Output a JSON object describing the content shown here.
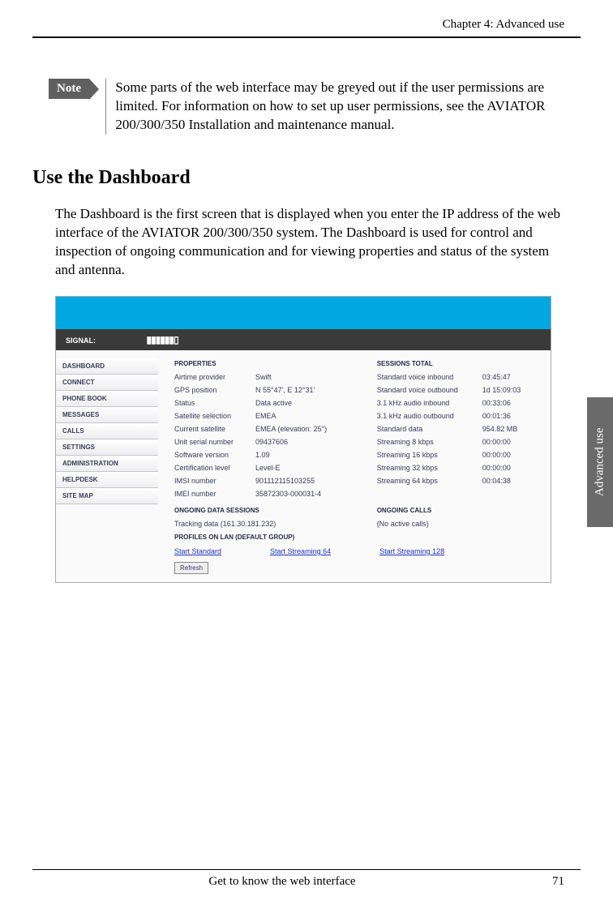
{
  "chapter_header": "Chapter 4:  Advanced use",
  "note": {
    "label": "Note",
    "text": "Some parts of the web interface may be greyed out if the user permissions are limited. For information on how to set up user permissions, see the AVIATOR 200/300/350 Installation and maintenance manual."
  },
  "section_heading": "Use the Dashboard",
  "body_paragraph": "The Dashboard is the first screen that is displayed when you enter the IP address of the web interface of the AVIATOR 200/300/350 system. The Dashboard is used for control and inspection of ongoing communication and for viewing properties and status of the system and antenna.",
  "side_tab": "Advanced use",
  "footer": {
    "center": "Get to know the web interface",
    "page": "71"
  },
  "screenshot": {
    "signal_label": "SIGNAL:",
    "signal_bars": "▮▮▮▮▮▮▯",
    "nav": [
      "DASHBOARD",
      "CONNECT",
      "PHONE BOOK",
      "MESSAGES",
      "CALLS",
      "SETTINGS",
      "ADMINISTRATION",
      "HELPDESK",
      "SITE MAP"
    ],
    "properties_header": "PROPERTIES",
    "sessions_header": "SESSIONS TOTAL",
    "properties": [
      {
        "label": "Airtime provider",
        "value": "Swift"
      },
      {
        "label": "GPS position",
        "value": "N 55°47', E 12°31'"
      },
      {
        "label": "Status",
        "value": "Data active"
      },
      {
        "label": "Satellite selection",
        "value": "EMEA"
      },
      {
        "label": "Current satellite",
        "value": "EMEA (elevation: 25°)"
      },
      {
        "label": "Unit serial number",
        "value": "09437606"
      },
      {
        "label": "Software version",
        "value": "1.09"
      },
      {
        "label": "Certification level",
        "value": "Level-E"
      },
      {
        "label": "IMSI number",
        "value": "901112115103255"
      },
      {
        "label": "IMEI number",
        "value": "35872303-000031-4"
      }
    ],
    "sessions": [
      {
        "label": "Standard voice inbound",
        "value": "03:45:47"
      },
      {
        "label": "Standard voice outbound",
        "value": "1d 15:09:03"
      },
      {
        "label": "3.1 kHz audio inbound",
        "value": "00:33:06"
      },
      {
        "label": "3.1 kHz audio outbound",
        "value": "00:01:36"
      },
      {
        "label": "Standard data",
        "value": "954.82 MB"
      },
      {
        "label": "Streaming 8 kbps",
        "value": "00:00:00"
      },
      {
        "label": "Streaming 16 kbps",
        "value": "00:00:00"
      },
      {
        "label": "Streaming 32 kbps",
        "value": "00:00:00"
      },
      {
        "label": "Streaming 64 kbps",
        "value": "00:04:38"
      }
    ],
    "ongoing_data_header": "ONGOING DATA SESSIONS",
    "ongoing_data_value": "Tracking data (161.30.181.232)",
    "ongoing_calls_header": "ONGOING CALLS",
    "ongoing_calls_value": "(No active calls)",
    "profiles_header": "PROFILES ON LAN (DEFAULT GROUP)",
    "links": [
      "Start Standard",
      "Start Streaming 64",
      "Start Streaming 128"
    ],
    "refresh": "Refresh"
  }
}
